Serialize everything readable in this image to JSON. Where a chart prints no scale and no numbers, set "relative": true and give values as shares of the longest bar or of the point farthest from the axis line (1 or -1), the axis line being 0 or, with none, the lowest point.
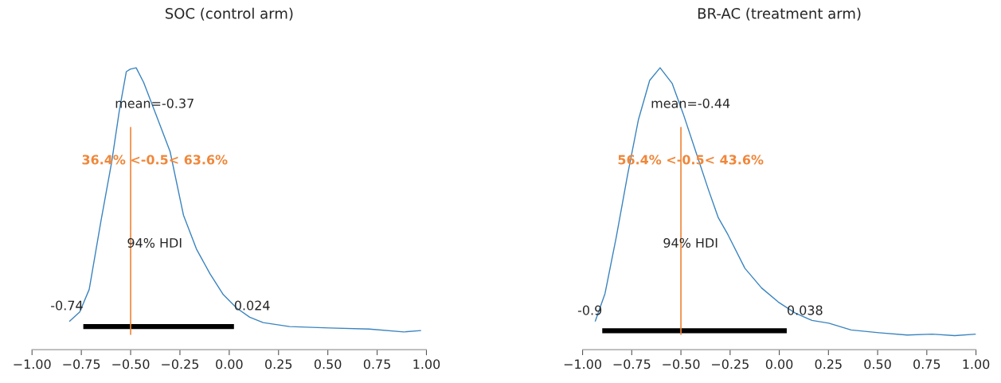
{
  "chart_data": [
    {
      "type": "line",
      "title": "SOC (control arm)",
      "relative": true,
      "tick_labels": "x",
      "xlim": [
        -1,
        1
      ],
      "xticks": [
        {
          "value": -1,
          "label": "−1.00"
        },
        {
          "value": -0.75,
          "label": "−0.75"
        },
        {
          "value": -0.5,
          "label": "−0.50"
        },
        {
          "value": -0.25,
          "label": "−0.25"
        },
        {
          "value": 0,
          "label": "0.00"
        },
        {
          "value": 0.25,
          "label": "0.25"
        },
        {
          "value": 0.5,
          "label": "0.50"
        },
        {
          "value": 0.75,
          "label": "0.75"
        },
        {
          "value": 1,
          "label": "1.00"
        }
      ],
      "series": [
        {
          "color": "#3a84bf",
          "x": [
            -0.811,
            -0.758,
            -0.71,
            -0.65,
            -0.596,
            -0.556,
            -0.522,
            -0.502,
            -0.472,
            -0.434,
            -0.367,
            -0.3,
            -0.232,
            -0.165,
            -0.098,
            -0.03,
            0.037,
            0.104,
            0.172,
            0.306,
            0.508,
            0.71,
            0.886,
            0.973
          ],
          "values": [
            0.1,
            0.134,
            0.214,
            0.458,
            0.666,
            0.854,
            0.986,
            0.995,
            1.0,
            0.948,
            0.826,
            0.703,
            0.477,
            0.355,
            0.27,
            0.195,
            0.148,
            0.115,
            0.096,
            0.082,
            0.077,
            0.073,
            0.063,
            0.068
          ]
        },
        {
          "color": "#000000",
          "x": [
            -0.74,
            0.024
          ],
          "values": [
            0.082,
            0.082
          ]
        }
      ],
      "ref_lines": [
        {
          "axis": "x",
          "value": -0.5,
          "color": "#f0873a"
        }
      ],
      "annotations": [
        "mean=-0.37",
        "36.4% <-0.5< 63.6%",
        "94% HDI",
        {
          "text": "-0.74",
          "x": -0.74,
          "y": 0.153
        },
        {
          "text": "0.024",
          "x": 0.024,
          "y": 0.153
        }
      ]
    },
    {
      "type": "line",
      "title": "BR-AC (treatment arm)",
      "relative": true,
      "tick_labels": "x",
      "xlim": [
        -1,
        1
      ],
      "xticks": [
        {
          "value": -1,
          "label": "−1.00"
        },
        {
          "value": -0.75,
          "label": "−0.75"
        },
        {
          "value": -0.5,
          "label": "−0.50"
        },
        {
          "value": -0.25,
          "label": "−0.25"
        },
        {
          "value": 0,
          "label": "0.00"
        },
        {
          "value": 0.25,
          "label": "0.25"
        },
        {
          "value": 0.5,
          "label": "0.50"
        },
        {
          "value": 0.75,
          "label": "0.75"
        },
        {
          "value": 1,
          "label": "1.00"
        }
      ],
      "series": [
        {
          "color": "#3a84bf",
          "x": [
            -0.936,
            -0.886,
            -0.829,
            -0.772,
            -0.716,
            -0.659,
            -0.606,
            -0.545,
            -0.488,
            -0.417,
            -0.36,
            -0.31,
            -0.261,
            -0.175,
            -0.09,
            -0.005,
            0.081,
            0.166,
            0.252,
            0.365,
            0.507,
            0.65,
            0.778,
            0.892,
            1.0
          ],
          "values": [
            0.1,
            0.199,
            0.398,
            0.617,
            0.816,
            0.955,
            1.0,
            0.945,
            0.836,
            0.687,
            0.567,
            0.468,
            0.408,
            0.289,
            0.219,
            0.169,
            0.13,
            0.104,
            0.094,
            0.07,
            0.06,
            0.052,
            0.055,
            0.05,
            0.055
          ]
        },
        {
          "color": "#000000",
          "x": [
            -0.9,
            0.038
          ],
          "values": [
            0.067,
            0.067
          ]
        }
      ],
      "ref_lines": [
        {
          "axis": "x",
          "value": -0.5,
          "color": "#f0873a"
        }
      ],
      "annotations": [
        "mean=-0.44",
        "56.4% <-0.5< 43.6%",
        "94% HDI",
        {
          "text": "-0.9",
          "x": -0.9,
          "y": 0.136
        },
        {
          "text": "0.038",
          "x": 0.038,
          "y": 0.136
        }
      ]
    }
  ]
}
